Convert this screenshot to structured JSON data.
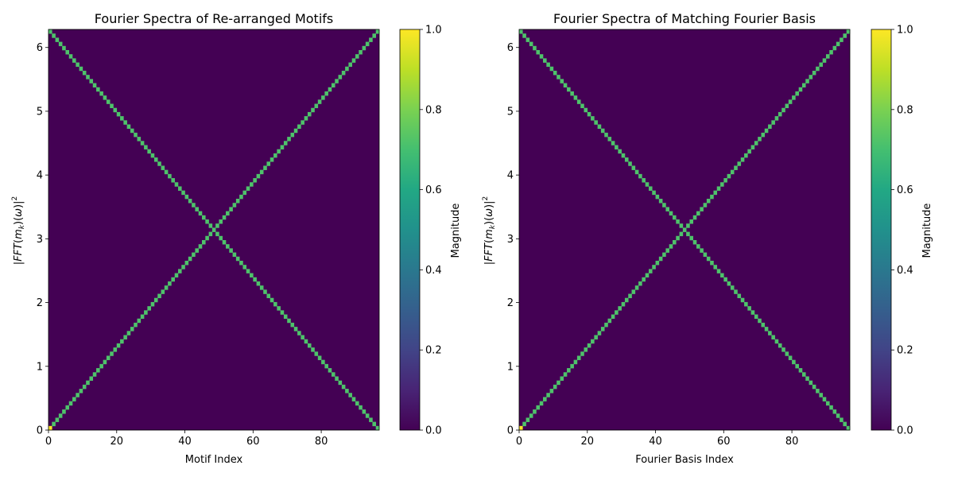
{
  "chart_data": [
    {
      "type": "heatmap",
      "title": "Fourier Spectra of Re-arranged Motifs",
      "xlabel": "Motif Index",
      "ylabel": "|FFT(m_k)(ω)|²",
      "xlim": [
        0,
        97
      ],
      "ylim": [
        0,
        6.2832
      ],
      "xticks": [
        "0",
        "20",
        "40",
        "60",
        "80"
      ],
      "yticks": [
        "0",
        "1",
        "2",
        "3",
        "4",
        "5",
        "6"
      ],
      "grid": false,
      "pattern": "Each column k (0..96) has magnitude 0.75 at rows k and 96-k of a 97×97 grid over ω ∈ [0, 2π]; cell (0,0) has magnitude 1.0; all other cells 0.",
      "nonzero_value": 0.75,
      "dc_value": 1.0,
      "grid_size": 97,
      "colorbar": {
        "label": "Magnitude",
        "range": [
          0,
          1
        ],
        "ticks": [
          "0.0",
          "0.2",
          "0.4",
          "0.6",
          "0.8",
          "1.0"
        ],
        "colormap": "viridis"
      }
    },
    {
      "type": "heatmap",
      "title": "Fourier Spectra of Matching Fourier Basis",
      "xlabel": "Fourier Basis Index",
      "ylabel": "|FFT(m_k)(ω)|²",
      "xlim": [
        0,
        97
      ],
      "ylim": [
        0,
        6.2832
      ],
      "xticks": [
        "0",
        "20",
        "40",
        "60",
        "80"
      ],
      "yticks": [
        "0",
        "1",
        "2",
        "3",
        "4",
        "5",
        "6"
      ],
      "grid": false,
      "pattern": "Each column k (0..96) has magnitude 0.75 at rows k and 96-k of a 97×97 grid over ω ∈ [0, 2π]; cell (0,0) has magnitude 1.0; all other cells 0.",
      "nonzero_value": 0.75,
      "dc_value": 1.0,
      "grid_size": 97,
      "colorbar": {
        "label": "Magnitude",
        "range": [
          0,
          1
        ],
        "ticks": [
          "0.0",
          "0.2",
          "0.4",
          "0.6",
          "0.8",
          "1.0"
        ],
        "colormap": "viridis"
      }
    }
  ],
  "colors": {
    "background_cell": "#440154",
    "highlight_cell": "#4ec36b",
    "dc_cell": "#fde725"
  }
}
